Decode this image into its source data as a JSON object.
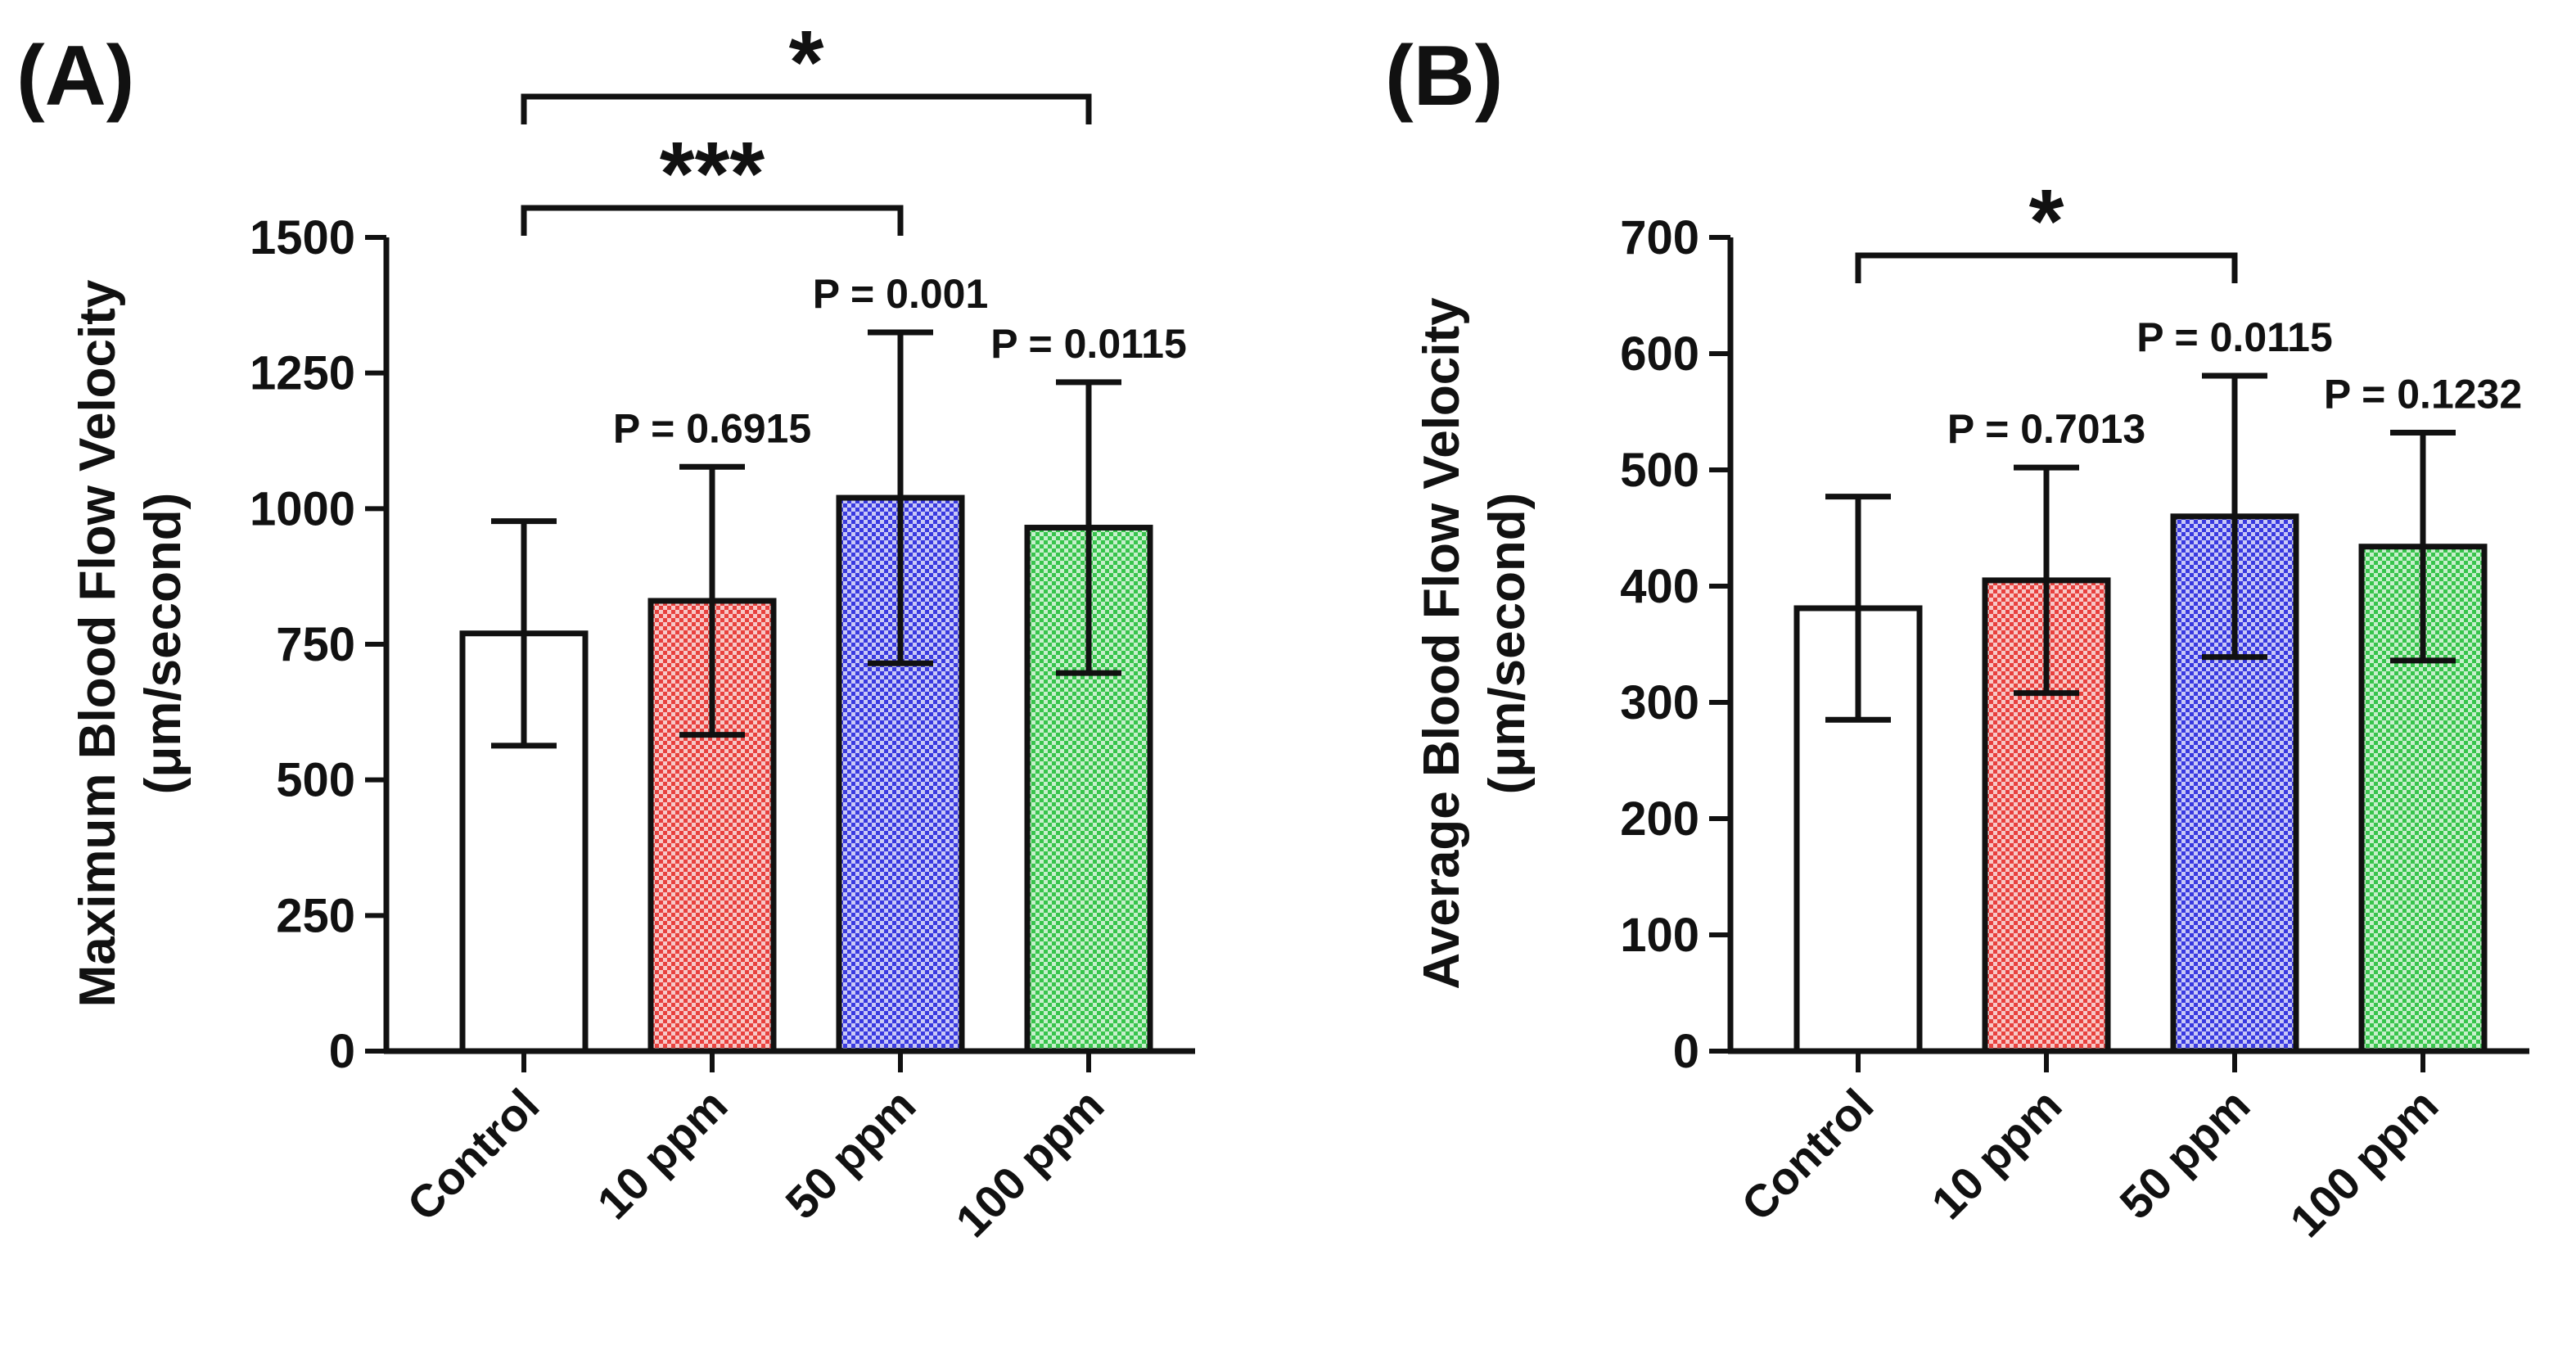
{
  "chart_data": [
    {
      "type": "bar",
      "panel_label": "(A)",
      "title": "",
      "xlabel": "",
      "ylabel": "Maximum Blood Flow Velocity",
      "ylabel_unit": "(μm/second)",
      "ylim": [
        0,
        1500
      ],
      "yticks": [
        0,
        250,
        500,
        750,
        1000,
        1250,
        1500
      ],
      "categories": [
        "Control",
        "10 ppm",
        "50 ppm",
        "100 ppm"
      ],
      "values": [
        770,
        830,
        1020,
        965
      ],
      "errors": [
        207,
        247,
        305,
        268
      ],
      "p_values": [
        "",
        "P = 0.6915",
        "P = 0.001",
        "P = 0.0115"
      ],
      "comparisons": [
        {
          "from": 0,
          "to": 2,
          "label": "***"
        },
        {
          "from": 0,
          "to": 3,
          "label": "*"
        }
      ]
    },
    {
      "type": "bar",
      "panel_label": "(B)",
      "title": "",
      "xlabel": "",
      "ylabel": "Average Blood Flow Velocity",
      "ylabel_unit": "(μm/second)",
      "ylim": [
        0,
        700
      ],
      "yticks": [
        0,
        100,
        200,
        300,
        400,
        500,
        600,
        700
      ],
      "categories": [
        "Control",
        "10 ppm",
        "50 ppm",
        "100 ppm"
      ],
      "values": [
        381,
        405,
        460,
        434
      ],
      "errors": [
        96,
        97,
        121,
        98
      ],
      "p_values": [
        "",
        "P = 0.7013",
        "P = 0.0115",
        "P = 0.1232"
      ],
      "comparisons": [
        {
          "from": 0,
          "to": 2,
          "label": "*"
        }
      ]
    }
  ],
  "colors": {
    "bars": [
      "#ffffff",
      "#e8413e",
      "#3a3ae0",
      "#38c44c"
    ],
    "stroke": "#111111"
  }
}
